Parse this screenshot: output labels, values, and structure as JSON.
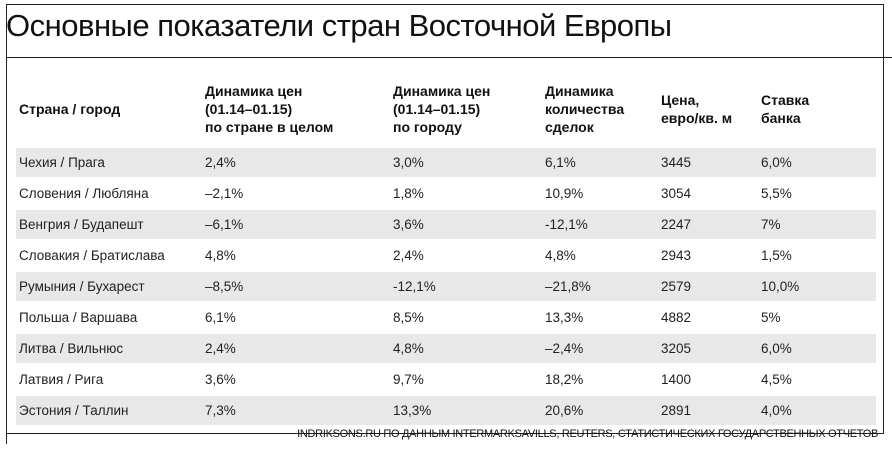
{
  "title": "Основные показатели стран Восточной Европы",
  "table": {
    "headers": [
      "Страна / город",
      "Динамика цен\n(01.14–01.15)\nпо стране в целом",
      "Динамика цен\n(01.14–01.15)\nпо городу",
      "Динамика\nколичества\nсделок",
      "Цена,\nевро/кв. м",
      "Ставка\nбанка"
    ],
    "rows": [
      [
        "Чехия / Прага",
        "2,4%",
        "3,0%",
        "6,1%",
        "3445",
        "6,0%"
      ],
      [
        "Словения / Любляна",
        "–2,1%",
        "1,8%",
        "10,9%",
        "3054",
        "5,5%"
      ],
      [
        "Венгрия / Будапешт",
        "–6,1%",
        "3,6%",
        "-12,1%",
        "2247",
        "7%"
      ],
      [
        "Словакия / Братислава",
        "4,8%",
        "2,4%",
        "4,8%",
        "2943",
        "1,5%"
      ],
      [
        "Румыния / Бухарест",
        "–8,5%",
        "-12,1%",
        "–21,8%",
        "2579",
        "10,0%"
      ],
      [
        "Польша / Варшава",
        "6,1%",
        "8,5%",
        "13,3%",
        "4882",
        "5%"
      ],
      [
        "Литва / Вильнюс",
        "2,4%",
        "4,8%",
        "–2,4%",
        "3205",
        "6,0%"
      ],
      [
        "Латвия / Рига",
        "3,6%",
        "9,7%",
        "18,2%",
        "1400",
        "4,5%"
      ],
      [
        "Эстония / Таллин",
        "7,3%",
        "13,3%",
        "20,6%",
        "2891",
        "4,0%"
      ]
    ]
  },
  "source": "INDRIKSONS.RU ПО ДАННЫМ INTERMARKSAVILLS, REUTERS, СТАТИСТИЧЕСКИХ ГОСУДАРСТВЕННЫХ ОТЧЕТОВ"
}
